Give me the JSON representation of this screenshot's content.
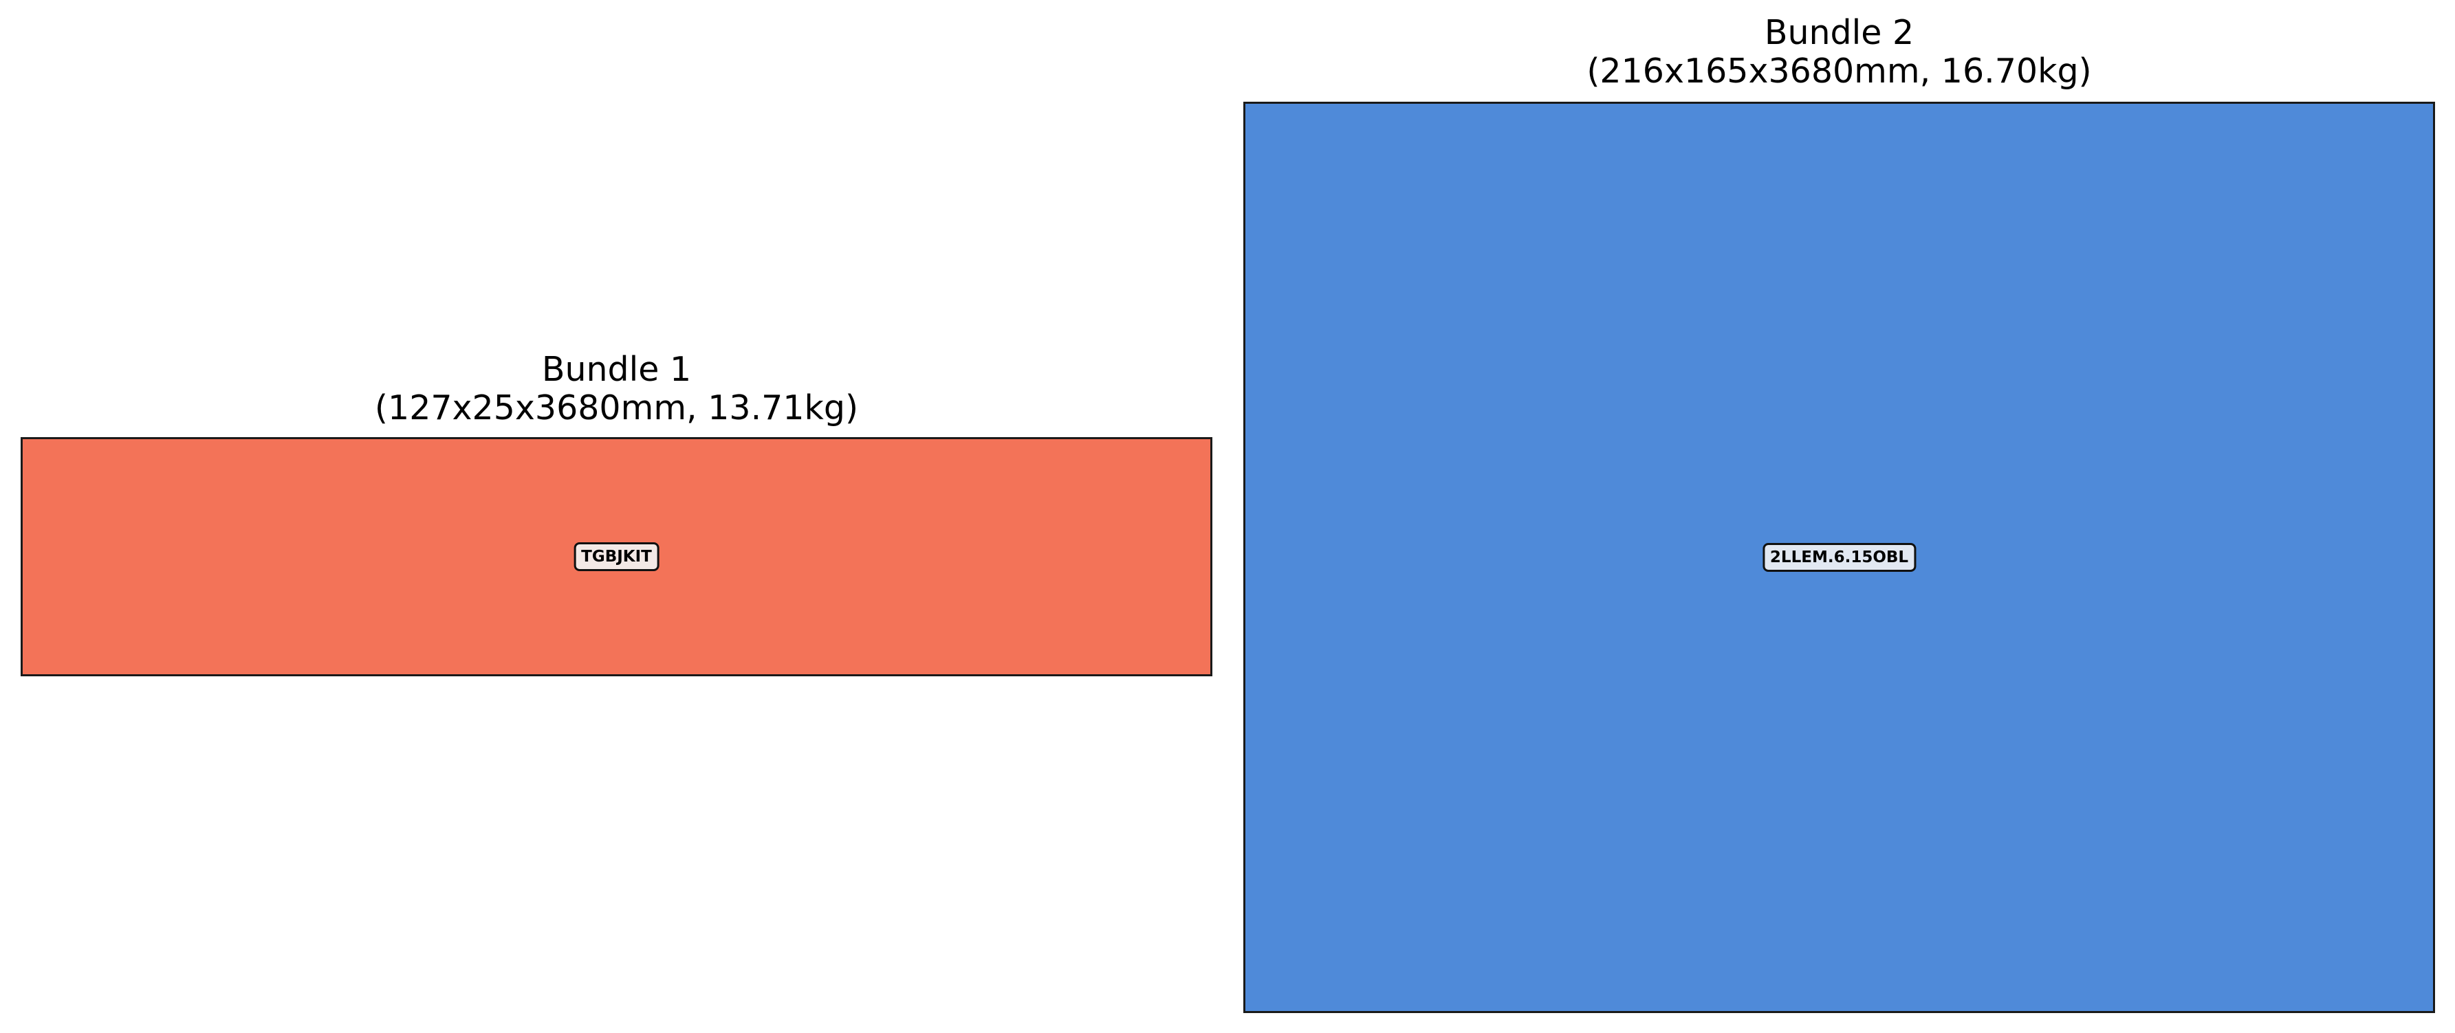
{
  "bundles": [
    {
      "title": "Bundle 1",
      "details": "(127x25x3680mm, 13.71kg)",
      "item_label": "TGBJKIT",
      "color": "#f37358"
    },
    {
      "title": "Bundle 2",
      "details": "(216x165x3680mm, 16.70kg)",
      "item_label": "2LLEM.6.15OBL",
      "color": "#4f8ad9"
    }
  ]
}
